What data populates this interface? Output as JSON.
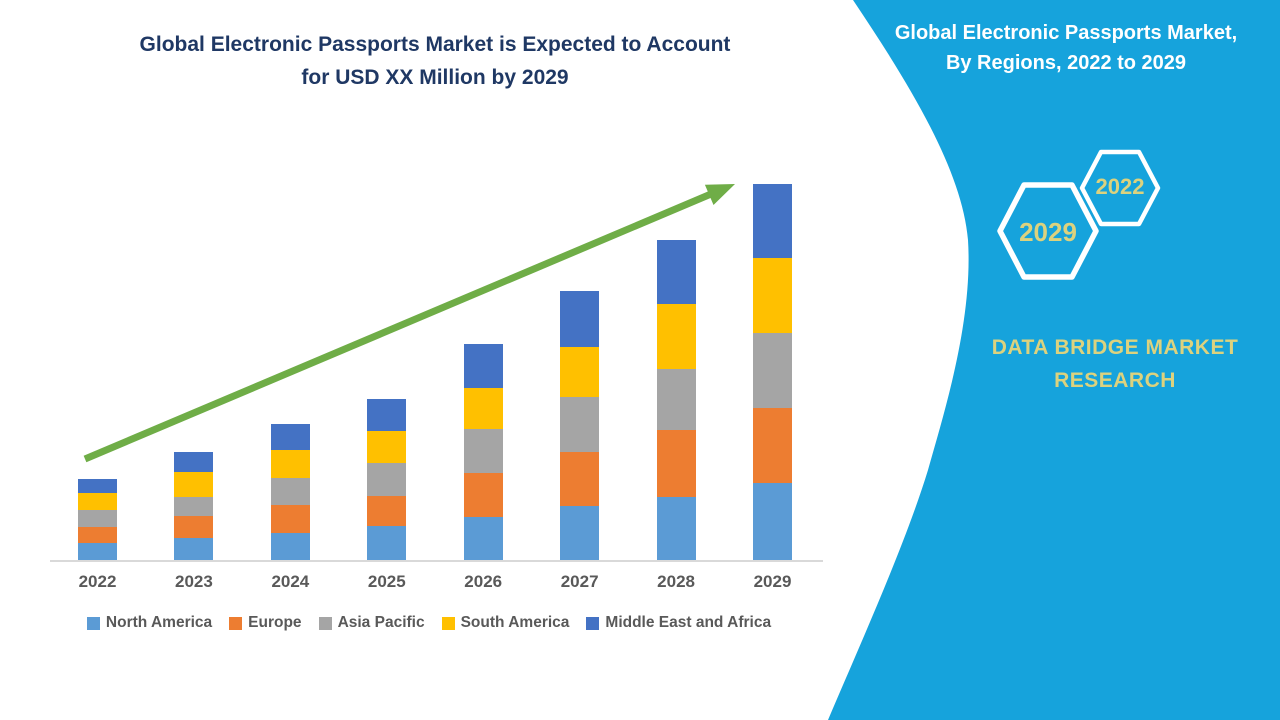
{
  "header": {
    "title_line1": "Global Electronic Passports Market is Expected to Account",
    "title_line2": "for USD XX Million by 2029",
    "title_color": "#1F3864"
  },
  "side_panel": {
    "bg_color": "#16A3DC",
    "heading_line1": "Global Electronic Passports Market,",
    "heading_line2": "By Regions, 2022 to 2029",
    "heading_color": "#FFFFFF",
    "hexagon_large_year": "2029",
    "hexagon_small_year": "2022",
    "hexagon_outline_color": "#FFFFFF",
    "brand_line1": "DATA BRIDGE MARKET",
    "brand_line2": "RESEARCH",
    "accent_text_color": "#DCD27E"
  },
  "chart_data": {
    "type": "bar",
    "stacked": true,
    "title": "Global Electronic Passports Market is Expected to Account for USD XX Million by 2029",
    "xlabel": "",
    "ylabel": "",
    "y_axis_visible": false,
    "value_units": "USD Million (values shown as XX, not labeled)",
    "legend_position": "bottom",
    "grid": false,
    "categories": [
      "2022",
      "2023",
      "2024",
      "2025",
      "2026",
      "2027",
      "2028",
      "2029"
    ],
    "series": [
      {
        "name": "North America",
        "color": "#5B9BD5",
        "values": [
          17,
          22,
          27,
          34,
          43,
          54,
          63,
          77
        ]
      },
      {
        "name": "Europe",
        "color": "#ED7D31",
        "values": [
          16,
          22,
          28,
          30,
          44,
          54,
          67,
          75
        ]
      },
      {
        "name": "Asia Pacific",
        "color": "#A5A5A5",
        "values": [
          17,
          19,
          27,
          33,
          44,
          55,
          61,
          75
        ]
      },
      {
        "name": "South America",
        "color": "#FFC000",
        "values": [
          17,
          25,
          28,
          32,
          41,
          50,
          65,
          75
        ]
      },
      {
        "name": "Middle East and Africa",
        "color": "#4472C4",
        "values": [
          14,
          20,
          26,
          32,
          44,
          56,
          64,
          74
        ]
      }
    ],
    "stack_totals": [
      81,
      108,
      136,
      161,
      216,
      269,
      320,
      376
    ],
    "trend_arrow": {
      "present": true,
      "color": "#6FAD47",
      "direction": "up-right"
    }
  }
}
